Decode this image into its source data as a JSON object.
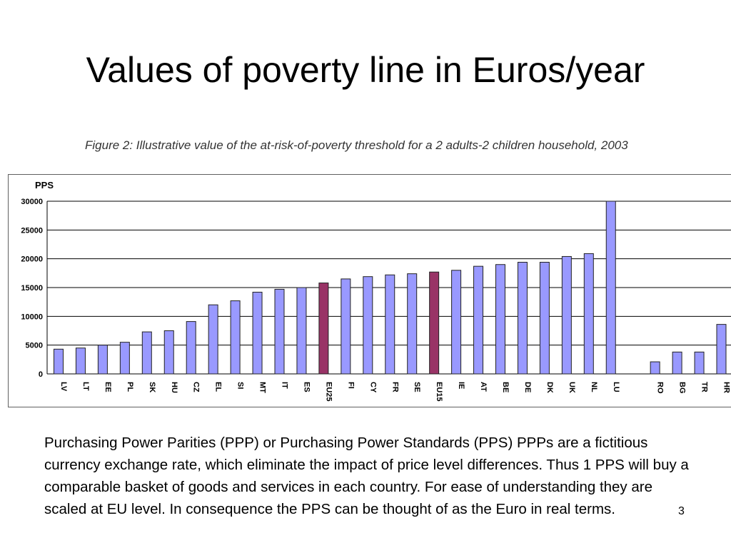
{
  "slide": {
    "title": "Values of poverty line in Euros/year",
    "caption": "Figure 2: Illustrative value of the at-risk-of-poverty threshold for a 2 adults-2 children household, 2003",
    "body": "Purchasing Power Parities (PPP) or  Purchasing Power Standards (PPS) PPPs are a fictitious currency exchange rate, which eliminate the impact of price level differences. Thus 1 PPS will buy a comparable basket of goods and services in each country. For ease of understanding they are scaled at EU level. In consequence the PPS can be thought of as the Euro in real terms.",
    "page_number": "3"
  },
  "chart_data": {
    "type": "bar",
    "ylabel": "PPS",
    "ylim": [
      0,
      30000
    ],
    "yticks": [
      "0",
      "5000",
      "10000",
      "15000",
      "20000",
      "25000",
      "30000"
    ],
    "grid": true,
    "categories": [
      "LV",
      "LT",
      "EE",
      "PL",
      "SK",
      "HU",
      "CZ",
      "EL",
      "SI",
      "MT",
      "IT",
      "ES",
      "EU25",
      "FI",
      "CY",
      "FR",
      "SE",
      "EU15",
      "IE",
      "AT",
      "BE",
      "DE",
      "DK",
      "UK",
      "NL",
      "LU",
      "",
      "RO",
      "BG",
      "TR",
      "HR"
    ],
    "values": [
      4300,
      4500,
      5000,
      5500,
      7300,
      7500,
      9100,
      12000,
      12700,
      14200,
      14700,
      15000,
      15800,
      16500,
      16900,
      17200,
      17400,
      17700,
      18000,
      18700,
      19000,
      19400,
      19400,
      20400,
      20900,
      30000,
      null,
      2100,
      3800,
      3800,
      8600
    ],
    "highlight": [
      "EU25",
      "EU15"
    ],
    "colors": {
      "bar": "#9999ff",
      "highlight": "#993366",
      "bar_stroke": "#222222",
      "grid": "#000000"
    }
  }
}
